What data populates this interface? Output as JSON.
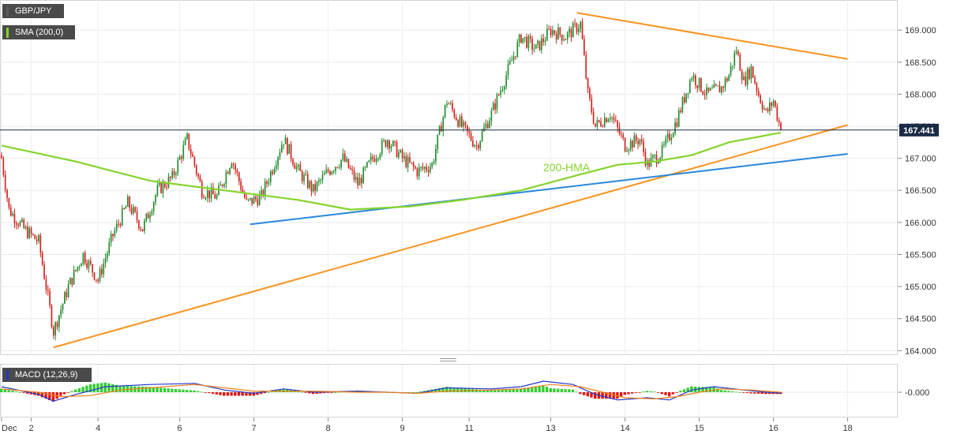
{
  "instrument": "GBP/JPY",
  "sma_label": "SMA (200,0)",
  "macd_label": "MACD (12,26,9)",
  "annotation": "200-HMA",
  "last_price": "167.441",
  "macd_zero_label": "-0.000",
  "colors": {
    "up_candle": "#1f8a2b",
    "down_candle": "#d0201a",
    "hma": "#84d42c",
    "trend_orange": "#f7931e",
    "trend_blue": "#2b86db",
    "macd_line": "#2336c8",
    "signal_line": "#f07f1a",
    "hist_pos": "#33cc33",
    "hist_neg": "#e0160f",
    "price_tag": "#1b2a44"
  },
  "chart_data": {
    "type": "candlestick",
    "title": "GBP/JPY",
    "ylim": [
      163.93,
      169.47
    ],
    "y_ticks": [
      "164.000",
      "164.500",
      "165.000",
      "165.500",
      "166.000",
      "166.500",
      "167.000",
      "167.500",
      "168.000",
      "168.500",
      "169.000"
    ],
    "x_ticks": [
      {
        "label": "Dec",
        "pos": 0
      },
      {
        "label": "2",
        "pos": 4
      },
      {
        "label": "4",
        "pos": 13
      },
      {
        "label": "6",
        "pos": 24
      },
      {
        "label": "7",
        "pos": 34
      },
      {
        "label": "8",
        "pos": 44
      },
      {
        "label": "9",
        "pos": 54
      },
      {
        "label": "11",
        "pos": 63
      },
      {
        "label": "13",
        "pos": 74
      },
      {
        "label": "14",
        "pos": 84
      },
      {
        "label": "15",
        "pos": 94
      },
      {
        "label": "16",
        "pos": 104
      },
      {
        "label": "18",
        "pos": 114
      }
    ],
    "close_anchors": [
      [
        0,
        167.0
      ],
      [
        1,
        166.2
      ],
      [
        3,
        165.9
      ],
      [
        5,
        165.7
      ],
      [
        7,
        164.3
      ],
      [
        9,
        165.0
      ],
      [
        11,
        165.5
      ],
      [
        13,
        165.1
      ],
      [
        15,
        165.8
      ],
      [
        17,
        166.3
      ],
      [
        19,
        165.9
      ],
      [
        21,
        166.5
      ],
      [
        23,
        166.7
      ],
      [
        25,
        167.3
      ],
      [
        27,
        166.5
      ],
      [
        29,
        166.4
      ],
      [
        31,
        167.0
      ],
      [
        33,
        166.3
      ],
      [
        35,
        166.4
      ],
      [
        37,
        167.0
      ],
      [
        38,
        167.3
      ],
      [
        40,
        166.8
      ],
      [
        42,
        166.5
      ],
      [
        44,
        166.8
      ],
      [
        46,
        167.0
      ],
      [
        48,
        166.6
      ],
      [
        50,
        167.0
      ],
      [
        52,
        167.3
      ],
      [
        54,
        167.0
      ],
      [
        56,
        166.8
      ],
      [
        58,
        166.9
      ],
      [
        60,
        167.9
      ],
      [
        62,
        167.5
      ],
      [
        64,
        167.2
      ],
      [
        66,
        167.7
      ],
      [
        68,
        168.3
      ],
      [
        70,
        168.9
      ],
      [
        72,
        168.7
      ],
      [
        74,
        169.0
      ],
      [
        76,
        168.9
      ],
      [
        78,
        169.1
      ],
      [
        79,
        168.0
      ],
      [
        80,
        167.5
      ],
      [
        82,
        167.7
      ],
      [
        84,
        167.2
      ],
      [
        86,
        167.3
      ],
      [
        87,
        166.9
      ],
      [
        89,
        167.1
      ],
      [
        91,
        167.6
      ],
      [
        93,
        168.3
      ],
      [
        95,
        168.0
      ],
      [
        97,
        168.1
      ],
      [
        98,
        168.3
      ],
      [
        99,
        168.7
      ],
      [
        100,
        168.2
      ],
      [
        101,
        168.4
      ],
      [
        102,
        168.0
      ],
      [
        103,
        167.7
      ],
      [
        104,
        167.9
      ],
      [
        105,
        167.44
      ]
    ],
    "hma_200": [
      [
        0,
        167.2
      ],
      [
        10,
        166.95
      ],
      [
        20,
        166.65
      ],
      [
        30,
        166.5
      ],
      [
        40,
        166.35
      ],
      [
        47,
        166.2
      ],
      [
        55,
        166.25
      ],
      [
        62,
        166.35
      ],
      [
        70,
        166.5
      ],
      [
        78,
        166.75
      ],
      [
        83,
        166.9
      ],
      [
        88,
        166.95
      ],
      [
        93,
        167.05
      ],
      [
        98,
        167.25
      ],
      [
        105,
        167.4
      ]
    ],
    "trendlines": [
      {
        "color": "orange",
        "from": [
          7,
          164.05
        ],
        "to": [
          114,
          167.52
        ]
      },
      {
        "color": "orange",
        "from": [
          77.5,
          169.27
        ],
        "to": [
          114,
          168.55
        ]
      },
      {
        "color": "blue",
        "from": [
          33.5,
          165.97
        ],
        "to": [
          114,
          167.07
        ]
      }
    ],
    "macd": [
      [
        0,
        0.05
      ],
      [
        5,
        -0.02
      ],
      [
        7,
        -0.08
      ],
      [
        10,
        -0.02
      ],
      [
        14,
        0.05
      ],
      [
        20,
        0.07
      ],
      [
        26,
        0.08
      ],
      [
        30,
        0.02
      ],
      [
        34,
        -0.01
      ],
      [
        38,
        0.03
      ],
      [
        42,
        0.0
      ],
      [
        48,
        0.01
      ],
      [
        52,
        0.0
      ],
      [
        56,
        -0.01
      ],
      [
        60,
        0.04
      ],
      [
        66,
        0.03
      ],
      [
        70,
        0.05
      ],
      [
        73,
        0.1
      ],
      [
        77,
        0.07
      ],
      [
        80,
        -0.02
      ],
      [
        83,
        -0.07
      ],
      [
        87,
        -0.05
      ],
      [
        90,
        -0.07
      ],
      [
        93,
        0.02
      ],
      [
        96,
        0.05
      ],
      [
        100,
        0.02
      ],
      [
        103,
        0.0
      ],
      [
        105,
        -0.01
      ]
    ],
    "signal": [
      [
        0,
        0.03
      ],
      [
        5,
        0.0
      ],
      [
        8,
        -0.04
      ],
      [
        12,
        -0.03
      ],
      [
        16,
        0.02
      ],
      [
        22,
        0.05
      ],
      [
        26,
        0.07
      ],
      [
        30,
        0.04
      ],
      [
        34,
        0.01
      ],
      [
        38,
        0.01
      ],
      [
        42,
        0.01
      ],
      [
        48,
        0.0
      ],
      [
        52,
        0.0
      ],
      [
        56,
        -0.01
      ],
      [
        60,
        0.01
      ],
      [
        66,
        0.02
      ],
      [
        70,
        0.03
      ],
      [
        74,
        0.07
      ],
      [
        78,
        0.05
      ],
      [
        81,
        0.0
      ],
      [
        84,
        -0.05
      ],
      [
        88,
        -0.06
      ],
      [
        91,
        -0.04
      ],
      [
        94,
        0.0
      ],
      [
        97,
        0.03
      ],
      [
        101,
        0.02
      ],
      [
        105,
        0.0
      ]
    ]
  }
}
